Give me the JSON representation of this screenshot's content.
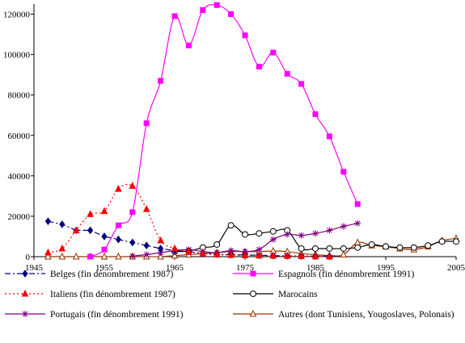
{
  "chart_data": {
    "type": "line",
    "title": "",
    "xlabel": "",
    "ylabel": "",
    "xlim": [
      1945,
      2005
    ],
    "ylim": [
      0,
      125000
    ],
    "x_ticks": [
      1945,
      1955,
      1965,
      1975,
      1985,
      1995,
      2005
    ],
    "y_ticks": [
      0,
      20000,
      40000,
      60000,
      80000,
      100000,
      120000
    ],
    "x_tick_labels": [
      "1945",
      "1955",
      "1965",
      "1975",
      "1985",
      "1995",
      "2005"
    ],
    "y_tick_labels": [
      "0",
      "20000",
      "40000",
      "60000",
      "80000",
      "100000",
      "120000"
    ],
    "legend_position": "bottom",
    "series": [
      {
        "name": "Belges (fin dénombrement 1987)",
        "color": "#000080",
        "dash": "7,3,2,3",
        "marker": "diamond",
        "smooth": false,
        "points": [
          [
            1947,
            17500
          ],
          [
            1949,
            16000
          ],
          [
            1951,
            13000
          ],
          [
            1953,
            13000
          ],
          [
            1955,
            10000
          ],
          [
            1957,
            8500
          ],
          [
            1959,
            7000
          ],
          [
            1961,
            5500
          ],
          [
            1963,
            4000
          ],
          [
            1965,
            3000
          ],
          [
            1967,
            2500
          ],
          [
            1969,
            1500
          ],
          [
            1971,
            1200
          ],
          [
            1973,
            1000
          ],
          [
            1975,
            800
          ],
          [
            1977,
            700
          ],
          [
            1979,
            500
          ],
          [
            1981,
            400
          ],
          [
            1983,
            300
          ],
          [
            1985,
            250
          ],
          [
            1987,
            200
          ]
        ]
      },
      {
        "name": "Espagnols (fin dénombrement 1991)",
        "color": "#ff00ff",
        "dash": "",
        "marker": "square",
        "smooth": true,
        "points": [
          [
            1953,
            0
          ],
          [
            1955,
            3500
          ],
          [
            1957,
            15500
          ],
          [
            1959,
            22000
          ],
          [
            1961,
            66000
          ],
          [
            1963,
            87000
          ],
          [
            1965,
            119000
          ],
          [
            1967,
            104500
          ],
          [
            1969,
            122000
          ],
          [
            1971,
            124500
          ],
          [
            1973,
            120000
          ],
          [
            1975,
            109500
          ],
          [
            1977,
            94000
          ],
          [
            1979,
            101000
          ],
          [
            1981,
            90500
          ],
          [
            1983,
            85500
          ],
          [
            1985,
            70500
          ],
          [
            1987,
            59500
          ],
          [
            1989,
            42000
          ],
          [
            1991,
            26000
          ]
        ]
      },
      {
        "name": "Italiens (fin dénombrement 1987)",
        "color": "#ff0000",
        "dash": "2,3",
        "marker": "triangle",
        "smooth": true,
        "points": [
          [
            1947,
            2000
          ],
          [
            1949,
            4000
          ],
          [
            1951,
            13000
          ],
          [
            1953,
            21000
          ],
          [
            1955,
            22500
          ],
          [
            1957,
            33500
          ],
          [
            1959,
            35000
          ],
          [
            1961,
            23500
          ],
          [
            1963,
            8000
          ],
          [
            1965,
            4000
          ],
          [
            1967,
            2500
          ],
          [
            1969,
            1500
          ],
          [
            1971,
            1000
          ],
          [
            1973,
            800
          ],
          [
            1975,
            600
          ],
          [
            1977,
            500
          ],
          [
            1979,
            400
          ],
          [
            1981,
            300
          ],
          [
            1983,
            200
          ],
          [
            1985,
            100
          ],
          [
            1987,
            0
          ]
        ]
      },
      {
        "name": "Marocains",
        "color": "#000000",
        "dash": "",
        "marker": "circle",
        "smooth": true,
        "points": [
          [
            1965,
            2500
          ],
          [
            1967,
            2800
          ],
          [
            1969,
            4500
          ],
          [
            1971,
            6000
          ],
          [
            1973,
            15500
          ],
          [
            1975,
            11000
          ],
          [
            1977,
            11500
          ],
          [
            1979,
            12500
          ],
          [
            1981,
            13000
          ],
          [
            1983,
            4000
          ],
          [
            1985,
            4000
          ],
          [
            1987,
            4000
          ],
          [
            1989,
            4000
          ],
          [
            1991,
            4500
          ],
          [
            1993,
            6000
          ],
          [
            1995,
            5000
          ],
          [
            1997,
            4500
          ],
          [
            1999,
            4500
          ],
          [
            2001,
            5500
          ],
          [
            2003,
            7500
          ],
          [
            2005,
            7500
          ]
        ]
      },
      {
        "name": "Portugais (fin dénombrement 1991)",
        "color": "#800080",
        "dash": "",
        "marker": "star",
        "smooth": true,
        "points": [
          [
            1959,
            300
          ],
          [
            1961,
            1000
          ],
          [
            1963,
            2000
          ],
          [
            1965,
            3000
          ],
          [
            1967,
            3500
          ],
          [
            1969,
            2500
          ],
          [
            1971,
            2000
          ],
          [
            1973,
            3000
          ],
          [
            1975,
            2500
          ],
          [
            1977,
            3500
          ],
          [
            1979,
            8500
          ],
          [
            1981,
            11000
          ],
          [
            1983,
            10500
          ],
          [
            1985,
            11500
          ],
          [
            1987,
            13000
          ],
          [
            1989,
            15000
          ],
          [
            1991,
            16500
          ]
        ]
      },
      {
        "name": "Autres (dont Tunisiens, Yougoslaves, Polonais)",
        "color": "#993300",
        "dash": "",
        "marker": "triangle-open",
        "smooth": true,
        "points": [
          [
            1947,
            0
          ],
          [
            1949,
            0
          ],
          [
            1951,
            0
          ],
          [
            1953,
            0
          ],
          [
            1955,
            0
          ],
          [
            1957,
            0
          ],
          [
            1959,
            0
          ],
          [
            1961,
            0
          ],
          [
            1963,
            0
          ],
          [
            1965,
            500
          ],
          [
            1967,
            1000
          ],
          [
            1969,
            1500
          ],
          [
            1971,
            2000
          ],
          [
            1973,
            2500
          ],
          [
            1975,
            2500
          ],
          [
            1977,
            2500
          ],
          [
            1979,
            2800
          ],
          [
            1981,
            2500
          ],
          [
            1983,
            1500
          ],
          [
            1985,
            1000
          ],
          [
            1987,
            500
          ],
          [
            1989,
            1000
          ],
          [
            1991,
            7000
          ],
          [
            1993,
            5500
          ],
          [
            1995,
            5000
          ],
          [
            1997,
            4000
          ],
          [
            1999,
            3500
          ],
          [
            2001,
            5000
          ],
          [
            2003,
            8000
          ],
          [
            2005,
            9000
          ]
        ]
      }
    ]
  }
}
